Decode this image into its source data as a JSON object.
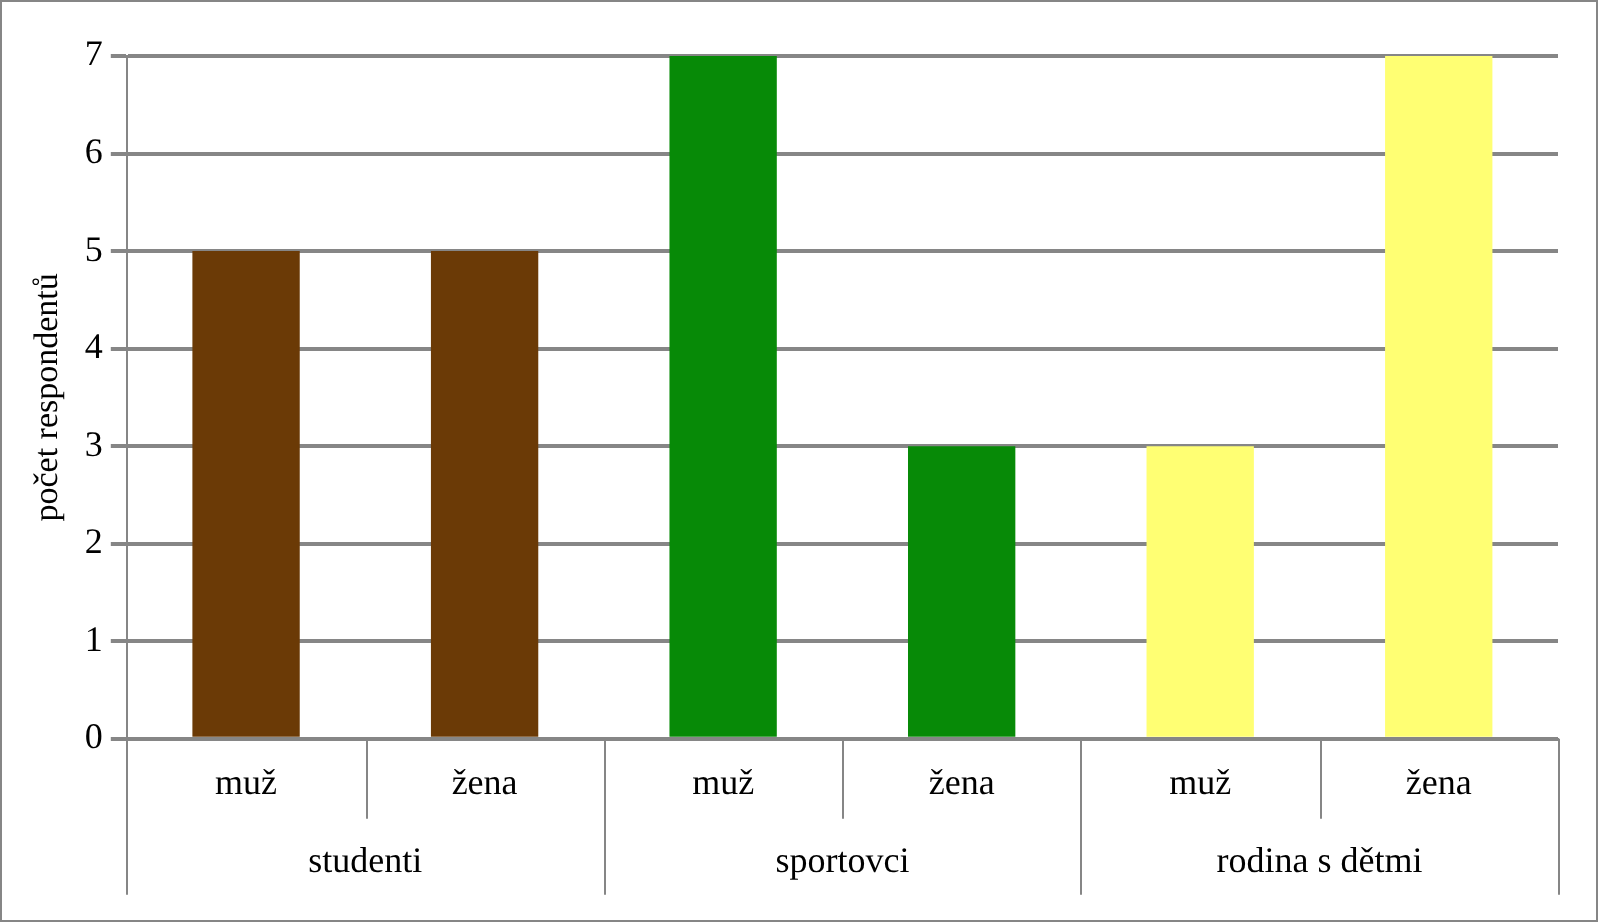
{
  "chart_data": {
    "type": "bar",
    "ylabel": "počet respondentů",
    "categories": [
      "muž",
      "žena",
      "muž",
      "žena",
      "muž",
      "žena"
    ],
    "values": [
      5,
      5,
      7,
      3,
      3,
      7
    ],
    "colors": [
      "#6b3a06",
      "#6b3a06",
      "#078a07",
      "#078a07",
      "#ffff73",
      "#ffff73"
    ],
    "annotations": [
      "studenti",
      "sportovci",
      "rodina s dětmi"
    ],
    "ylim": [
      0,
      7
    ],
    "yticks": [
      0,
      1,
      2,
      3,
      4,
      5,
      6,
      7
    ],
    "grid": "y",
    "legend": false
  }
}
